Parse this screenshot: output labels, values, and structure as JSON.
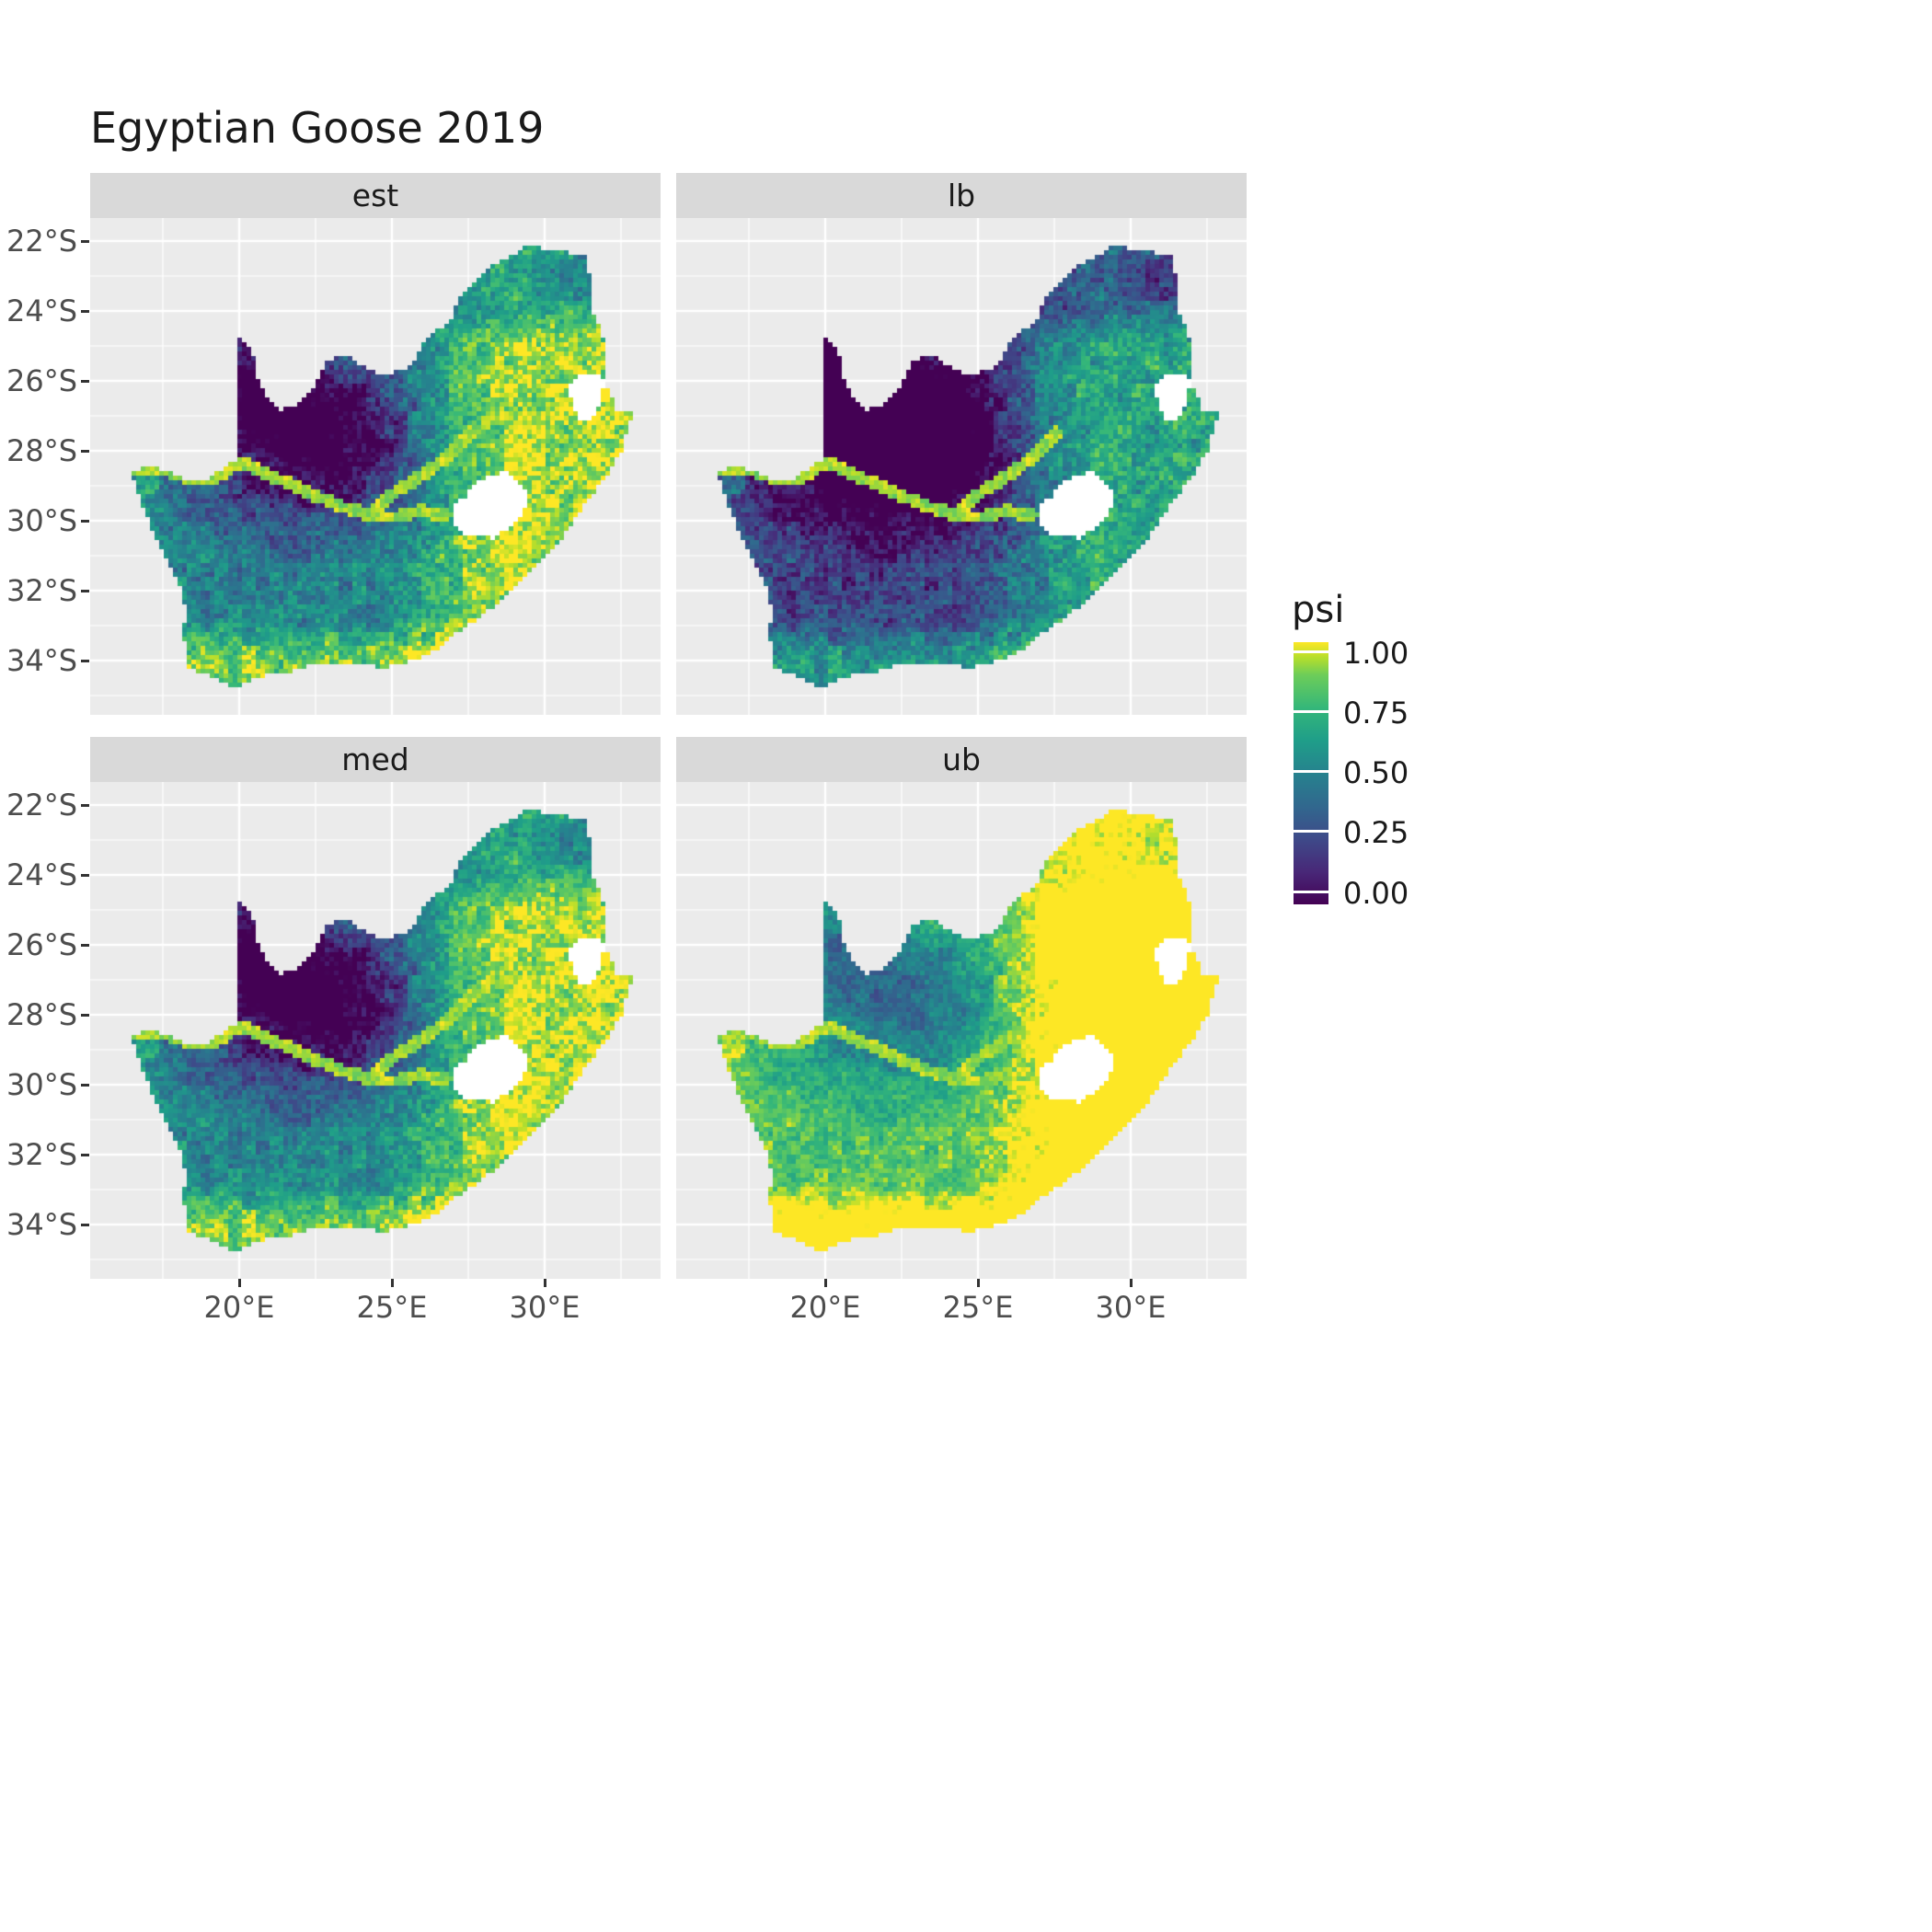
{
  "title": "Egyptian Goose 2019",
  "facets": {
    "labels": [
      "est",
      "lb",
      "med",
      "ub"
    ]
  },
  "axes": {
    "y_ticks": [
      "22°S",
      "24°S",
      "26°S",
      "28°S",
      "30°S",
      "32°S",
      "34°S"
    ],
    "x_ticks": [
      "20°E",
      "25°E",
      "30°E"
    ]
  },
  "legend": {
    "title": "psi",
    "ticks": [
      "1.00",
      "0.75",
      "0.50",
      "0.25",
      "0.00"
    ]
  },
  "colors": {
    "panel_bg": "#EBEBEB",
    "strip_bg": "#D9D9D9",
    "gridline": "#FFFFFF",
    "axis_text": "#4D4D4D",
    "tick_mark": "#333333",
    "title_text": "#1A1A1A",
    "hole_fill": "#FFFFFF"
  },
  "chart_data": {
    "type": "heatmap",
    "title": "Egyptian Goose 2019",
    "variable": "psi",
    "value_range": [
      0,
      1
    ],
    "facets": [
      {
        "label": "est",
        "value_offset": 0.0,
        "noise_amp": 0.55,
        "low_region_scale": 1.0
      },
      {
        "label": "lb",
        "value_offset": -0.26,
        "noise_amp": 0.55,
        "low_region_scale": 1.15
      },
      {
        "label": "med",
        "value_offset": 0.02,
        "noise_amp": 0.5,
        "low_region_scale": 1.05
      },
      {
        "label": "ub",
        "value_offset": 0.3,
        "noise_amp": 0.4,
        "low_region_scale": 0.62
      }
    ],
    "x_axis": {
      "unit": "°E",
      "ticks": [
        20,
        25,
        30
      ],
      "range": [
        15.1,
        33.8
      ]
    },
    "y_axis": {
      "unit": "°S",
      "ticks": [
        22,
        24,
        26,
        28,
        30,
        32,
        34
      ],
      "range": [
        21.3,
        35.5
      ]
    },
    "legend": {
      "title": "psi",
      "ticks": [
        1.0,
        0.75,
        0.5,
        0.25,
        0.0
      ],
      "position": "right"
    },
    "colormap": {
      "name": "viridis",
      "stops": [
        [
          0,
          "#440154"
        ],
        [
          0.125,
          "#482878"
        ],
        [
          0.25,
          "#3E4A89"
        ],
        [
          0.375,
          "#31688E"
        ],
        [
          0.5,
          "#26828E"
        ],
        [
          0.625,
          "#1F9E89"
        ],
        [
          0.75,
          "#35B779"
        ],
        [
          0.875,
          "#6DCD59"
        ],
        [
          0.94,
          "#B4DE2C"
        ],
        [
          1,
          "#FDE725"
        ]
      ]
    },
    "region": {
      "name": "South Africa",
      "outline": [
        [
          16.45,
          28.6
        ],
        [
          17.1,
          28.45
        ],
        [
          17.7,
          28.6
        ],
        [
          18.35,
          28.85
        ],
        [
          19.0,
          28.8
        ],
        [
          19.55,
          28.45
        ],
        [
          20.0,
          28.2
        ],
        [
          20.0,
          24.78
        ],
        [
          20.3,
          24.95
        ],
        [
          20.55,
          25.45
        ],
        [
          20.62,
          25.95
        ],
        [
          20.85,
          26.35
        ],
        [
          21.3,
          26.85
        ],
        [
          21.95,
          26.65
        ],
        [
          22.4,
          26.2
        ],
        [
          22.65,
          25.75
        ],
        [
          22.9,
          25.45
        ],
        [
          23.2,
          25.28
        ],
        [
          23.55,
          25.3
        ],
        [
          23.95,
          25.55
        ],
        [
          24.4,
          25.75
        ],
        [
          24.9,
          25.8
        ],
        [
          25.4,
          25.68
        ],
        [
          25.75,
          25.4
        ],
        [
          25.98,
          24.9
        ],
        [
          26.4,
          24.62
        ],
        [
          26.9,
          24.3
        ],
        [
          27.2,
          23.62
        ],
        [
          27.72,
          23.22
        ],
        [
          28.22,
          22.72
        ],
        [
          28.8,
          22.48
        ],
        [
          29.37,
          22.18
        ],
        [
          29.95,
          22.2
        ],
        [
          30.45,
          22.3
        ],
        [
          31.05,
          22.35
        ],
        [
          31.3,
          22.42
        ],
        [
          31.5,
          23.05
        ],
        [
          31.55,
          23.95
        ],
        [
          31.8,
          24.4
        ],
        [
          32.0,
          25.1
        ],
        [
          31.95,
          25.62
        ],
        [
          32.05,
          26.15
        ],
        [
          32.35,
          26.85
        ],
        [
          32.9,
          26.86
        ],
        [
          32.55,
          27.95
        ],
        [
          32.1,
          28.6
        ],
        [
          31.6,
          29.25
        ],
        [
          31.0,
          29.9
        ],
        [
          30.35,
          30.8
        ],
        [
          29.65,
          31.35
        ],
        [
          28.85,
          32.05
        ],
        [
          28.0,
          32.7
        ],
        [
          27.3,
          33.1
        ],
        [
          26.4,
          33.75
        ],
        [
          25.65,
          34.02
        ],
        [
          24.8,
          34.2
        ],
        [
          23.7,
          34.1
        ],
        [
          22.5,
          34.05
        ],
        [
          21.5,
          34.4
        ],
        [
          20.5,
          34.45
        ],
        [
          20.0,
          34.8
        ],
        [
          19.4,
          34.62
        ],
        [
          18.8,
          34.35
        ],
        [
          18.35,
          34.2
        ],
        [
          18.28,
          33.6
        ],
        [
          18.05,
          33.15
        ],
        [
          18.3,
          32.75
        ],
        [
          18.1,
          32.0
        ],
        [
          17.8,
          31.4
        ],
        [
          17.25,
          30.5
        ],
        [
          16.9,
          29.7
        ]
      ],
      "holes": {
        "lesotho": [
          [
            27.0,
            30.1
          ],
          [
            27.05,
            29.6
          ],
          [
            27.4,
            29.3
          ],
          [
            27.55,
            29.05
          ],
          [
            28.15,
            28.72
          ],
          [
            28.7,
            28.6
          ],
          [
            29.15,
            28.9
          ],
          [
            29.45,
            29.3
          ],
          [
            29.3,
            29.78
          ],
          [
            28.9,
            30.15
          ],
          [
            28.35,
            30.5
          ],
          [
            27.7,
            30.45
          ],
          [
            27.3,
            30.35
          ]
        ],
        "eswatini": [
          [
            30.82,
            26.1
          ],
          [
            31.1,
            25.78
          ],
          [
            31.6,
            25.75
          ],
          [
            31.95,
            25.98
          ],
          [
            31.88,
            26.5
          ],
          [
            31.58,
            27.05
          ],
          [
            31.2,
            27.2
          ],
          [
            30.88,
            26.7
          ]
        ]
      },
      "rivers": [
        [
          [
            16.6,
            28.5
          ],
          [
            17.6,
            28.55
          ],
          [
            18.5,
            28.85
          ],
          [
            19.3,
            28.72
          ],
          [
            20.05,
            28.3
          ],
          [
            20.9,
            28.7
          ],
          [
            21.7,
            28.95
          ],
          [
            22.55,
            29.3
          ],
          [
            23.35,
            29.6
          ],
          [
            24.2,
            29.82
          ],
          [
            25.05,
            29.9
          ],
          [
            25.9,
            29.72
          ],
          [
            26.8,
            29.85
          ]
        ],
        [
          [
            24.2,
            29.82
          ],
          [
            25.1,
            29.2
          ],
          [
            26.0,
            28.7
          ],
          [
            26.9,
            28.1
          ],
          [
            27.6,
            27.5
          ]
        ]
      ]
    },
    "grid": {
      "major_color": "#FFFFFF",
      "panel_bg": "#EBEBEB"
    }
  }
}
